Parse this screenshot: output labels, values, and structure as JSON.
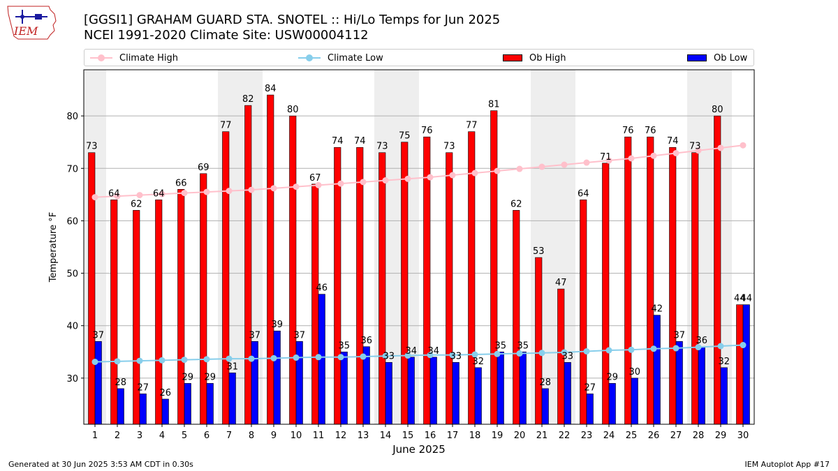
{
  "header": {
    "logo_text": "IEM",
    "title_line1": "[GGSI1] GRAHAM GUARD STA. SNOTEL :: Hi/Lo Temps for Jun 2025",
    "title_line2": "NCEI 1991-2020 Climate Site: USW00004112"
  },
  "legend": {
    "climate_high": "Climate High",
    "climate_low": "Climate Low",
    "ob_high": "Ob High",
    "ob_low": "Ob Low"
  },
  "footer": {
    "left": "Generated at 30 Jun 2025 3:53 AM CDT in 0.30s",
    "right": "IEM Autoplot App #17"
  },
  "colors": {
    "ob_high": "#ff0000",
    "ob_low": "#0000ff",
    "climate_high": "#ffc0cb",
    "climate_low": "#87ceeb",
    "weekend_shade": "#eeeeee",
    "grid": "#b0b0b0"
  },
  "chart_data": {
    "type": "bar",
    "title": "[GGSI1] GRAHAM GUARD STA. SNOTEL :: Hi/Lo Temps for Jun 2025",
    "xlabel": "June 2025",
    "ylabel": "Temperature $^\\circ$F",
    "categories": [
      "1",
      "2",
      "3",
      "4",
      "5",
      "6",
      "7",
      "8",
      "9",
      "10",
      "11",
      "12",
      "13",
      "14",
      "15",
      "16",
      "17",
      "18",
      "19",
      "20",
      "21",
      "22",
      "23",
      "24",
      "25",
      "26",
      "27",
      "28",
      "29",
      "30"
    ],
    "yticks": [
      30,
      40,
      50,
      60,
      70,
      80
    ],
    "ylim": [
      21.2,
      88.8
    ],
    "grid": "y",
    "legend_position": "top",
    "shaded_days": [
      1,
      7,
      8,
      14,
      15,
      21,
      22,
      28,
      29
    ],
    "series": [
      {
        "name": "Ob High",
        "kind": "bar",
        "values": [
          73,
          64,
          62,
          64,
          66,
          69,
          77,
          82,
          84,
          80,
          67,
          74,
          74,
          73,
          75,
          76,
          73,
          77,
          81,
          62,
          53,
          47,
          64,
          71,
          76,
          76,
          74,
          73,
          80,
          44
        ]
      },
      {
        "name": "Ob Low",
        "kind": "bar",
        "values": [
          37,
          28,
          27,
          26,
          29,
          29,
          31,
          37,
          39,
          37,
          46,
          35,
          36,
          33,
          34,
          34,
          33,
          32,
          35,
          35,
          28,
          33,
          27,
          29,
          30,
          42,
          37,
          36,
          32,
          44
        ]
      },
      {
        "name": "Climate High",
        "kind": "line",
        "values": [
          64.5,
          64.7,
          64.9,
          65.1,
          65.3,
          65.5,
          65.7,
          65.9,
          66.2,
          66.5,
          66.8,
          67.1,
          67.4,
          67.7,
          68.0,
          68.3,
          68.7,
          69.1,
          69.5,
          69.9,
          70.3,
          70.7,
          71.1,
          71.5,
          71.9,
          72.4,
          72.9,
          73.4,
          73.9,
          74.4
        ]
      },
      {
        "name": "Climate Low",
        "kind": "line",
        "values": [
          33.1,
          33.2,
          33.3,
          33.4,
          33.5,
          33.6,
          33.7,
          33.7,
          33.8,
          33.9,
          34.0,
          34.0,
          34.1,
          34.2,
          34.3,
          34.4,
          34.4,
          34.5,
          34.6,
          34.7,
          34.8,
          34.9,
          35.1,
          35.3,
          35.4,
          35.6,
          35.7,
          35.9,
          36.1,
          36.3
        ]
      }
    ]
  }
}
